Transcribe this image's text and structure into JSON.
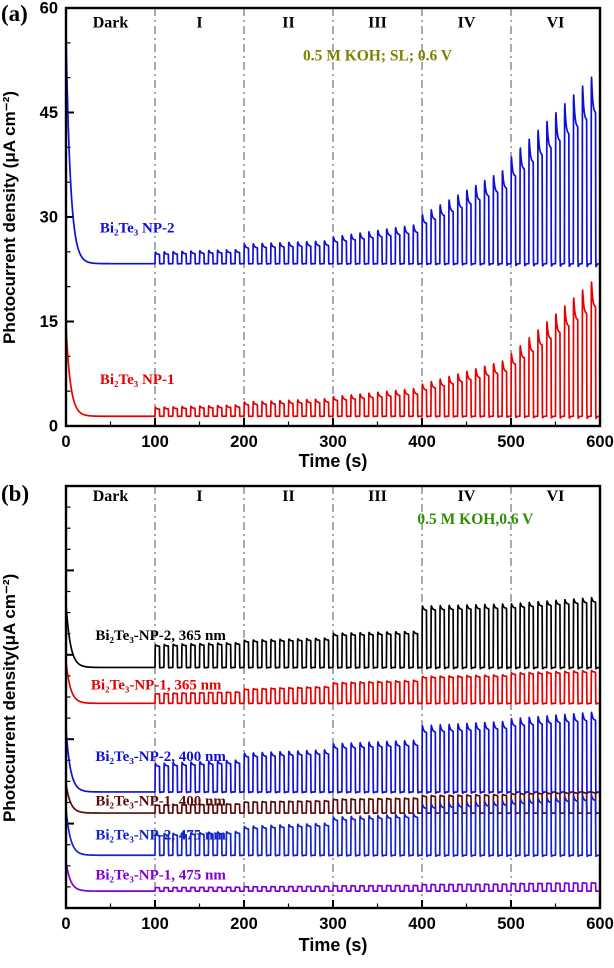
{
  "chart_data": [
    {
      "type": "line",
      "tag": "(a)",
      "ylabel": "Photocurrent density (μA cm⁻²)",
      "xlabel": "Time (s)",
      "annotation": {
        "text": "0.5 M KOH; SL; 0.6 V",
        "color": "#7f7f00",
        "x": 350,
        "y": 52.5
      },
      "xlim": [
        0,
        600
      ],
      "ylim": [
        0,
        60
      ],
      "x_ticks": [
        0,
        100,
        200,
        300,
        400,
        500,
        600
      ],
      "y_ticks": [
        0,
        15,
        30,
        45,
        60
      ],
      "x_minor_step": 50,
      "y_minor_step": 5,
      "show_y_tick_labels": true,
      "regions": {
        "labels": [
          "Dark",
          "I",
          "II",
          "III",
          "IV",
          "VI"
        ],
        "boundaries": [
          100,
          200,
          300,
          400,
          500
        ],
        "label_y": 57.2
      },
      "light_period": {
        "on": 5,
        "off": 5
      },
      "series": [
        {
          "name": "Bi₂Te₃ NP-2",
          "color": "#0f0fd6",
          "baseline": 23.3,
          "initial_spike": 33,
          "decay_tau": 5,
          "region_amplitudes": [
            [
              1.3,
              1.6
            ],
            [
              2.2,
              2.6
            ],
            [
              3.0,
              4.5
            ],
            [
              5.5,
              11
            ],
            [
              12,
              22
            ]
          ],
          "spike_overshoot": 0.4,
          "label_pos": {
            "x": 38,
            "y": 27.8
          }
        },
        {
          "name": "Bi₂Te₃ NP-1",
          "color": "#e60000",
          "baseline": 1.4,
          "initial_spike": 13,
          "decay_tau": 5,
          "region_amplitudes": [
            [
              1.0,
              1.3
            ],
            [
              1.6,
              2.0
            ],
            [
              2.2,
              3.2
            ],
            [
              3.6,
              6.5
            ],
            [
              7,
              16
            ]
          ],
          "spike_overshoot": 0.4,
          "label_pos": {
            "x": 38,
            "y": 6.0
          }
        }
      ]
    },
    {
      "type": "line",
      "tag": "(b)",
      "ylabel": "Photocurrent density(μA cm⁻²)",
      "xlabel": "Time (s)",
      "annotation": {
        "text": "0.5 M KOH,0.6 V",
        "color": "#2f8f00",
        "x": 460,
        "y": 91
      },
      "xlim": [
        0,
        600
      ],
      "ylim": [
        0,
        100
      ],
      "x_ticks": [
        0,
        100,
        200,
        300,
        400,
        500,
        600
      ],
      "y_ticks": [
        0,
        20,
        40,
        60,
        80,
        100
      ],
      "x_minor_step": 50,
      "y_minor_step": 5,
      "show_y_tick_labels": false,
      "regions": {
        "labels": [
          "Dark",
          "I",
          "II",
          "III",
          "IV",
          "VI"
        ],
        "boundaries": [
          100,
          200,
          300,
          400,
          500
        ],
        "label_y": 96.5
      },
      "light_period": {
        "on": 5,
        "off": 5
      },
      "series": [
        {
          "name": "Bi₂Te₃-NP-2, 365 nm",
          "color": "#000000",
          "baseline": 57,
          "initial_spike": 15,
          "decay_tau": 5,
          "region_amplitudes": [
            [
              5,
              5.5
            ],
            [
              6,
              6.5
            ],
            [
              7.5,
              8
            ],
            [
              13.5,
              14
            ],
            [
              14,
              15.5
            ]
          ],
          "spike_overshoot": 0.12,
          "label_pos": {
            "x": 33,
            "y": 63.5
          }
        },
        {
          "name": "Bi₂Te₃-NP-1, 365 nm",
          "color": "#e60000",
          "baseline": 48.5,
          "initial_spike": 10,
          "decay_tau": 5,
          "region_amplitudes": [
            [
              2.2,
              2.6
            ],
            [
              3.2,
              3.8
            ],
            [
              4.6,
              5.2
            ],
            [
              6,
              6.4
            ],
            [
              6.8,
              7.4
            ]
          ],
          "spike_overshoot": 0.1,
          "label_pos": {
            "x": 28,
            "y": 51.8
          }
        },
        {
          "name": "Bi₂Te₃-NP-2, 400 nm",
          "color": "#0f0fd6",
          "baseline": 27.5,
          "initial_spike": 15,
          "decay_tau": 5,
          "region_amplitudes": [
            [
              6,
              6.8
            ],
            [
              8.2,
              9
            ],
            [
              10.2,
              11
            ],
            [
              14,
              15
            ],
            [
              15.5,
              17
            ]
          ],
          "spike_overshoot": 0.18,
          "label_pos": {
            "x": 33,
            "y": 34.8
          }
        },
        {
          "name": "Bi₂Te₃-NP-1, 400 nm",
          "color": "#5a0b0b",
          "baseline": 22.5,
          "initial_spike": 7,
          "decay_tau": 5,
          "region_amplitudes": [
            [
              1.8,
              2.1
            ],
            [
              2.5,
              2.8
            ],
            [
              3.1,
              3.4
            ],
            [
              3.9,
              4.2
            ],
            [
              4.4,
              4.8
            ]
          ],
          "spike_overshoot": 0.1,
          "label_pos": {
            "x": 33,
            "y": 24.3
          }
        },
        {
          "name": "Bi₂Te₃-NP-2, 475 nm",
          "color": "#1222cc",
          "baseline": 12.5,
          "initial_spike": 11,
          "decay_tau": 5,
          "region_amplitudes": [
            [
              4.6,
              5.2
            ],
            [
              6.2,
              7
            ],
            [
              8.2,
              9
            ],
            [
              11,
              11.8
            ],
            [
              12,
              13
            ]
          ],
          "spike_overshoot": 0.15,
          "label_pos": {
            "x": 33,
            "y": 16.2
          }
        },
        {
          "name": "Bi₂Te₃-NP-1, 475 nm",
          "color": "#7d00d6",
          "baseline": 4,
          "initial_spike": 7,
          "decay_tau": 5,
          "region_amplitudes": [
            [
              0.8,
              0.9
            ],
            [
              1.0,
              1.1
            ],
            [
              1.2,
              1.3
            ],
            [
              1.5,
              1.6
            ],
            [
              1.7,
              1.9
            ]
          ],
          "spike_overshoot": 0.1,
          "label_pos": {
            "x": 33,
            "y": 6.8
          }
        }
      ]
    }
  ]
}
